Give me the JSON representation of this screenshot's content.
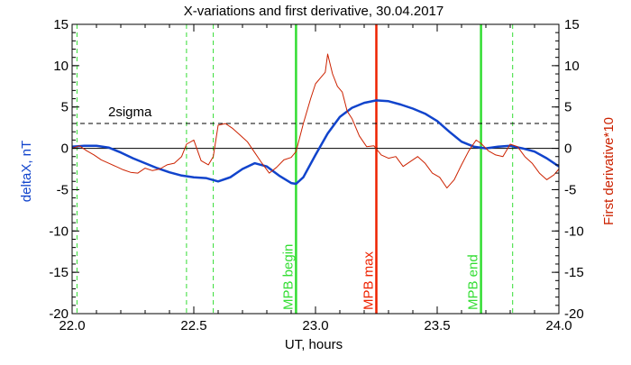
{
  "chart_data": {
    "type": "line",
    "title": "X-variations and first derivative, 30.04.2017",
    "xlabel": "UT, hours",
    "ylabel_left": "deltaX, nT",
    "ylabel_right": "First derivative*10",
    "xlim": [
      22.0,
      24.0
    ],
    "ylim_left": [
      -20,
      15
    ],
    "ylim_right": [
      -20,
      15
    ],
    "x_ticks": [
      22.0,
      22.5,
      23.0,
      23.5,
      24.0
    ],
    "x_tick_labels": [
      "22.0",
      "22.5",
      "23.0",
      "23.5",
      "24.0"
    ],
    "y_ticks": [
      15,
      10,
      5,
      0,
      -5,
      -10,
      -15,
      -20
    ],
    "y_tick_labels": [
      "15",
      "10",
      "5",
      "0",
      "-5",
      "-10",
      "-15",
      "-20"
    ],
    "grid": false,
    "colors": {
      "deltaX": "#1144cc",
      "derivative": "#cc2200",
      "marker_green": "#33dd33",
      "marker_red": "#ee2200",
      "axis": "#000000"
    },
    "series": [
      {
        "axis": "left",
        "color": "#1144cc",
        "x": [
          22.0,
          22.05,
          22.1,
          22.15,
          22.2,
          22.25,
          22.3,
          22.35,
          22.4,
          22.45,
          22.5,
          22.55,
          22.6,
          22.65,
          22.7,
          22.75,
          22.8,
          22.85,
          22.9,
          22.92,
          22.95,
          23.0,
          23.05,
          23.1,
          23.15,
          23.2,
          23.25,
          23.3,
          23.35,
          23.4,
          23.45,
          23.5,
          23.55,
          23.6,
          23.65,
          23.7,
          23.75,
          23.8,
          23.85,
          23.9,
          23.95,
          24.0
        ],
        "values": [
          0.2,
          0.3,
          0.3,
          0.1,
          -0.5,
          -1.2,
          -1.8,
          -2.4,
          -2.9,
          -3.3,
          -3.5,
          -3.6,
          -4.0,
          -3.5,
          -2.5,
          -1.8,
          -2.2,
          -3.3,
          -4.2,
          -4.3,
          -3.5,
          -0.8,
          1.8,
          3.8,
          4.9,
          5.5,
          5.8,
          5.7,
          5.3,
          4.8,
          4.2,
          3.3,
          2.0,
          0.8,
          0.2,
          0.0,
          0.2,
          0.3,
          0.0,
          -0.4,
          -1.2,
          -2.2
        ]
      },
      {
        "axis": "right",
        "color": "#cc2200",
        "x": [
          22.0,
          22.03,
          22.06,
          22.09,
          22.12,
          22.15,
          22.18,
          22.21,
          22.24,
          22.27,
          22.3,
          22.33,
          22.36,
          22.39,
          22.42,
          22.45,
          22.47,
          22.5,
          22.53,
          22.56,
          22.58,
          22.6,
          22.63,
          22.66,
          22.69,
          22.72,
          22.75,
          22.78,
          22.81,
          22.84,
          22.87,
          22.9,
          22.92,
          22.95,
          22.98,
          23.0,
          23.02,
          23.04,
          23.05,
          23.07,
          23.09,
          23.11,
          23.13,
          23.15,
          23.18,
          23.21,
          23.24,
          23.27,
          23.3,
          23.33,
          23.36,
          23.39,
          23.42,
          23.45,
          23.48,
          23.51,
          23.54,
          23.57,
          23.6,
          23.63,
          23.66,
          23.68,
          23.71,
          23.74,
          23.77,
          23.8,
          23.83,
          23.86,
          23.89,
          23.92,
          23.95,
          23.98,
          24.0
        ],
        "values": [
          0.0,
          0.3,
          -0.3,
          -0.8,
          -1.4,
          -1.8,
          -2.2,
          -2.6,
          -2.9,
          -3.0,
          -2.4,
          -2.7,
          -2.5,
          -2.0,
          -1.8,
          -1.0,
          0.5,
          1.0,
          -1.5,
          -2.0,
          -1.0,
          2.8,
          3.0,
          2.4,
          1.6,
          0.8,
          -0.5,
          -1.8,
          -3.0,
          -2.3,
          -1.4,
          -1.1,
          -0.4,
          3.0,
          6.0,
          7.8,
          8.5,
          9.2,
          11.4,
          9.0,
          7.5,
          6.8,
          4.5,
          3.6,
          1.5,
          0.2,
          0.3,
          -0.8,
          -1.2,
          -1.0,
          -2.2,
          -1.6,
          -1.0,
          -1.8,
          -3.0,
          -3.5,
          -4.8,
          -3.8,
          -2.0,
          -0.3,
          1.0,
          0.6,
          -0.3,
          -0.8,
          -1.0,
          0.5,
          0.2,
          -1.0,
          -1.8,
          -3.0,
          -3.8,
          -3.2,
          -2.5
        ]
      }
    ],
    "reference_lines": [
      {
        "type": "horizontal",
        "y": 0,
        "style": "solid",
        "color": "#000000"
      },
      {
        "type": "horizontal",
        "y": 3,
        "style": "dashed",
        "color": "#000000",
        "label": "2sigma"
      }
    ],
    "vertical_markers": [
      {
        "x": 22.02,
        "style": "dashed",
        "color": "#33dd33"
      },
      {
        "x": 22.47,
        "style": "dashed",
        "color": "#33dd33"
      },
      {
        "x": 22.58,
        "style": "dashed",
        "color": "#33dd33"
      },
      {
        "x": 22.92,
        "style": "solid",
        "color": "#33dd33",
        "label": "MPB begin"
      },
      {
        "x": 23.25,
        "style": "solid",
        "color": "#ee2200",
        "label": "MPB max"
      },
      {
        "x": 23.68,
        "style": "solid",
        "color": "#33dd33",
        "label": "MPB end"
      },
      {
        "x": 23.81,
        "style": "dashed",
        "color": "#33dd33"
      }
    ]
  }
}
